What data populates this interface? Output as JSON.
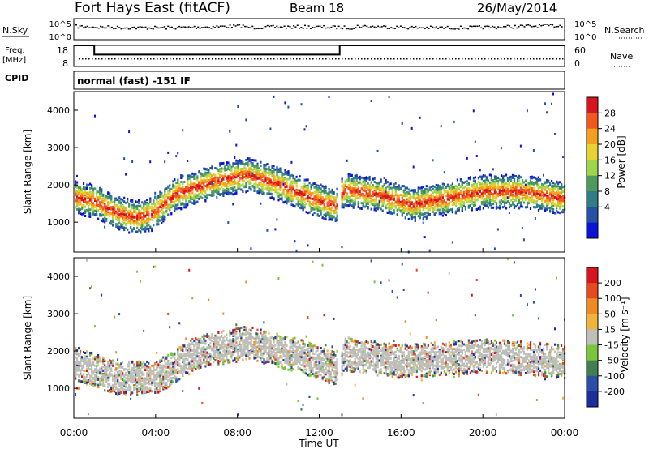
{
  "header": {
    "station": "Fort Hays East (fitACF)",
    "beam": "Beam 18",
    "date": "26/May/2014"
  },
  "top_panels": {
    "nsky_label": "N.Sky",
    "nsearch_label": "N.Search",
    "noise_ticks_left": [
      "10^5",
      "10^0"
    ],
    "noise_ticks_right": [
      "10^5",
      "10^0"
    ],
    "freq_label": "Freq.",
    "freq_unit": "[MHz]",
    "freq_ticks": [
      "18",
      "8"
    ],
    "nave_label": "Nave",
    "nave_ticks": [
      "60",
      "0"
    ],
    "cpid_label": "CPID",
    "cpid_text": "normal (fast) -151 IF"
  },
  "colorbars": {
    "power": {
      "label": "Power [dB]",
      "ticks": [
        "28",
        "24",
        "20",
        "16",
        "12",
        "8",
        "4"
      ],
      "colors": [
        "#0a14d8",
        "#264fa6",
        "#2f7d86",
        "#4d9a5c",
        "#9ed64a",
        "#e8d232",
        "#f59f1e",
        "#f2571c",
        "#d9141c"
      ]
    },
    "velocity": {
      "label": "Velocity [m s⁻¹]",
      "ticks": [
        "200",
        "100",
        "50",
        "15",
        "-15",
        "-50",
        "-100",
        "-200"
      ],
      "colors": [
        "#1d2e9c",
        "#2b4fa9",
        "#3f7f51",
        "#7cc63a",
        "#bfbfb9",
        "#f0b43a",
        "#f08a22",
        "#e84a1e",
        "#d8141c"
      ]
    }
  },
  "chart_data": [
    {
      "type": "heatmap",
      "name": "power",
      "ylabel": "Slant Range [km]",
      "xlabel": "",
      "xlim": [
        0,
        24
      ],
      "ylim": [
        200,
        4500
      ],
      "yticks": [
        "4000",
        "3000",
        "2000",
        "1000"
      ],
      "xticks": [
        "00:00",
        "04:00",
        "08:00",
        "12:00",
        "16:00",
        "20:00",
        "00:00"
      ],
      "main_echo_band_km": [
        [
          0,
          1700
        ],
        [
          1,
          1600
        ],
        [
          2,
          1300
        ],
        [
          3,
          1150
        ],
        [
          3.8,
          1250
        ],
        [
          5,
          1800
        ],
        [
          7,
          2150
        ],
        [
          8.5,
          2300
        ],
        [
          10,
          2050
        ],
        [
          11.5,
          1700
        ],
        [
          12.8,
          1450
        ],
        [
          13.2,
          1900
        ],
        [
          15,
          1750
        ],
        [
          16.5,
          1500
        ],
        [
          18,
          1650
        ],
        [
          20,
          1850
        ],
        [
          22,
          1850
        ],
        [
          24,
          1650
        ]
      ]
    },
    {
      "type": "heatmap",
      "name": "velocity",
      "ylabel": "Slant Range [km]",
      "xlabel": "Time UT",
      "xlim": [
        0,
        24
      ],
      "ylim": [
        200,
        4500
      ],
      "yticks": [
        "4000",
        "3000",
        "2000",
        "1000"
      ],
      "xticks": [
        "00:00",
        "04:00",
        "08:00",
        "12:00",
        "16:00",
        "20:00",
        "00:00"
      ],
      "main_echo_band_km": [
        [
          0,
          1700
        ],
        [
          2,
          1300
        ],
        [
          4,
          1300
        ],
        [
          6,
          2000
        ],
        [
          8.5,
          2250
        ],
        [
          11,
          1900
        ],
        [
          12.8,
          1550
        ],
        [
          13.2,
          1950
        ],
        [
          16,
          1750
        ],
        [
          20,
          1900
        ],
        [
          24,
          1750
        ]
      ]
    },
    {
      "type": "line",
      "name": "frequency",
      "ylabel": "Freq. [MHz]",
      "ylim": [
        8,
        18
      ],
      "series": [
        {
          "x": [
            0,
            1,
            1,
            13,
            13,
            24
          ],
          "values": [
            18,
            18,
            13.6,
            13.6,
            18,
            18
          ]
        }
      ]
    }
  ]
}
